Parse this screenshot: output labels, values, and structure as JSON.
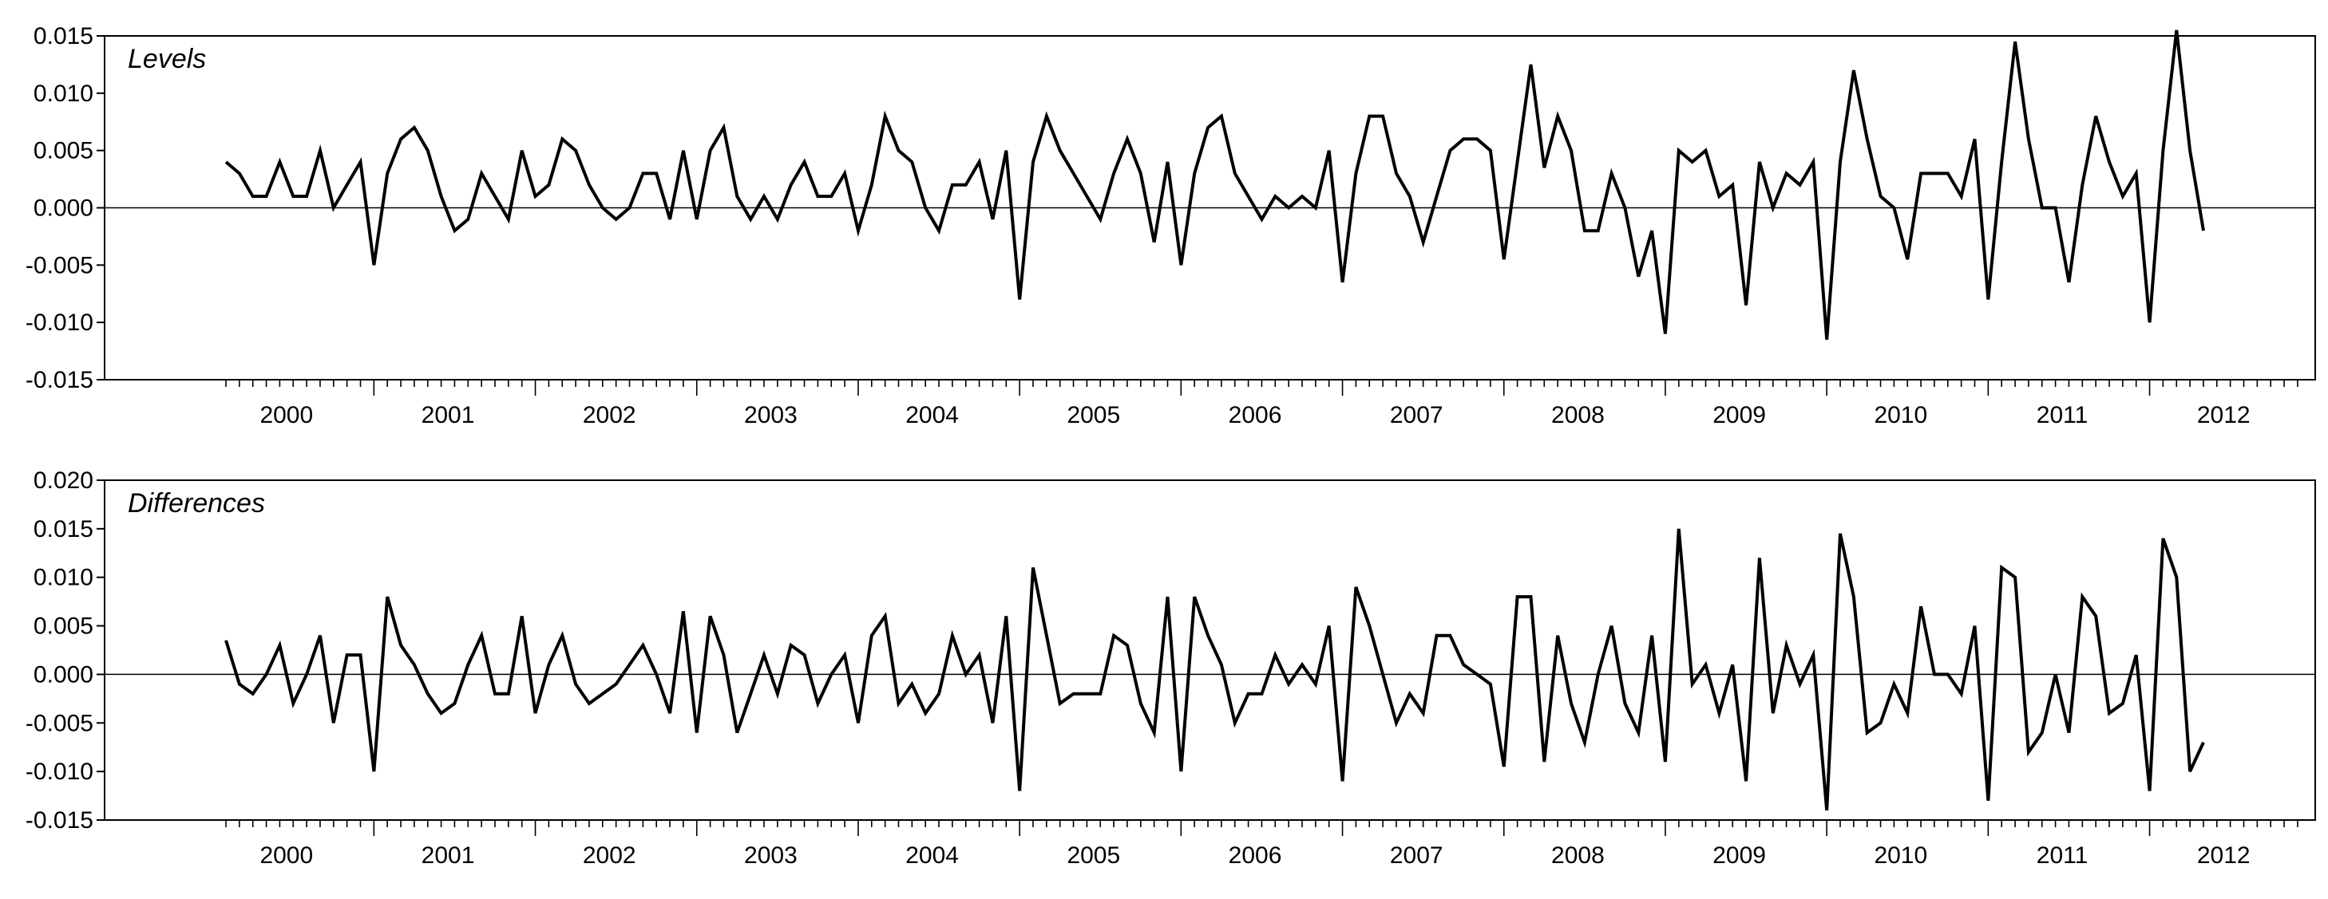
{
  "chart_data": [
    {
      "type": "line",
      "title": "Levels",
      "xlabel": "",
      "ylabel": "",
      "ylim": [
        -0.015,
        0.015
      ],
      "yticks": [
        "0.015",
        "0.010",
        "0.005",
        "0.000",
        "-0.005",
        "-0.010",
        "-0.015"
      ],
      "year_labels": [
        "2000",
        "2001",
        "2002",
        "2003",
        "2004",
        "2005",
        "2006",
        "2007",
        "2008",
        "2009",
        "2010",
        "2011",
        "2012"
      ],
      "x_start": "2000-02",
      "frequency": "monthly",
      "zero_line": true,
      "values": [
        0.004,
        0.003,
        0.001,
        0.001,
        0.004,
        0.001,
        0.001,
        0.005,
        0.0,
        0.002,
        0.004,
        -0.005,
        0.003,
        0.006,
        0.007,
        0.005,
        0.001,
        -0.002,
        -0.001,
        0.003,
        0.001,
        -0.001,
        0.005,
        0.001,
        0.002,
        0.006,
        0.005,
        0.002,
        0.0,
        -0.001,
        0.0,
        0.003,
        0.003,
        -0.001,
        0.005,
        -0.001,
        0.005,
        0.007,
        0.001,
        -0.001,
        0.001,
        -0.001,
        0.002,
        0.004,
        0.001,
        0.001,
        0.003,
        -0.002,
        0.002,
        0.008,
        0.005,
        0.004,
        0.0,
        -0.002,
        0.002,
        0.002,
        0.004,
        -0.001,
        0.005,
        -0.008,
        0.004,
        0.008,
        0.005,
        0.003,
        0.001,
        -0.001,
        0.003,
        0.006,
        0.003,
        -0.003,
        0.004,
        -0.005,
        0.003,
        0.007,
        0.008,
        0.003,
        0.001,
        -0.001,
        0.001,
        0.0,
        0.001,
        0.0,
        0.005,
        -0.0065,
        0.003,
        0.008,
        0.008,
        0.003,
        0.001,
        -0.003,
        0.001,
        0.005,
        0.006,
        0.006,
        0.005,
        -0.0045,
        0.004,
        0.0125,
        0.0035,
        0.008,
        0.005,
        -0.002,
        -0.002,
        0.003,
        0.0,
        -0.006,
        -0.002,
        -0.011,
        0.005,
        0.004,
        0.005,
        0.001,
        0.002,
        -0.0085,
        0.004,
        0.0,
        0.003,
        0.002,
        0.004,
        -0.0115,
        0.004,
        0.012,
        0.006,
        0.001,
        0.0,
        -0.0045,
        0.003,
        0.003,
        0.003,
        0.001,
        0.006,
        -0.008,
        0.004,
        0.0145,
        0.006,
        0.0,
        0.0,
        -0.0065,
        0.002,
        0.008,
        0.004,
        0.001,
        0.003,
        -0.01,
        0.005,
        0.0155,
        0.005,
        -0.002
      ]
    },
    {
      "type": "line",
      "title": "Differences",
      "xlabel": "",
      "ylabel": "",
      "ylim": [
        -0.015,
        0.02
      ],
      "yticks": [
        "0.020",
        "0.015",
        "0.010",
        "0.005",
        "0.000",
        "-0.005",
        "-0.010",
        "-0.015"
      ],
      "year_labels": [
        "2000",
        "2001",
        "2002",
        "2003",
        "2004",
        "2005",
        "2006",
        "2007",
        "2008",
        "2009",
        "2010",
        "2011",
        "2012"
      ],
      "x_start": "2000-02",
      "frequency": "monthly",
      "zero_line": true,
      "values": [
        0.0035,
        -0.001,
        -0.002,
        0.0,
        0.003,
        -0.003,
        0.0,
        0.004,
        -0.005,
        0.002,
        0.002,
        -0.01,
        0.008,
        0.003,
        0.001,
        -0.002,
        -0.004,
        -0.003,
        0.001,
        0.004,
        -0.002,
        -0.002,
        0.006,
        -0.004,
        0.001,
        0.004,
        -0.001,
        -0.003,
        -0.002,
        -0.001,
        0.001,
        0.003,
        0.0,
        -0.004,
        0.0065,
        -0.006,
        0.006,
        0.002,
        -0.006,
        -0.002,
        0.002,
        -0.002,
        0.003,
        0.002,
        -0.003,
        0.0,
        0.002,
        -0.005,
        0.004,
        0.006,
        -0.003,
        -0.001,
        -0.004,
        -0.002,
        0.004,
        0.0,
        0.002,
        -0.005,
        0.006,
        -0.012,
        0.011,
        0.004,
        -0.003,
        -0.002,
        -0.002,
        -0.002,
        0.004,
        0.003,
        -0.003,
        -0.006,
        0.008,
        -0.01,
        0.008,
        0.004,
        0.001,
        -0.005,
        -0.002,
        -0.002,
        0.002,
        -0.001,
        0.001,
        -0.001,
        0.005,
        -0.011,
        0.009,
        0.005,
        0.0,
        -0.005,
        -0.002,
        -0.004,
        0.004,
        0.004,
        0.001,
        0.0,
        -0.001,
        -0.0095,
        0.008,
        0.008,
        -0.009,
        0.004,
        -0.003,
        -0.007,
        0.0,
        0.005,
        -0.003,
        -0.006,
        0.004,
        -0.009,
        0.015,
        -0.001,
        0.001,
        -0.004,
        0.001,
        -0.011,
        0.012,
        -0.004,
        0.003,
        -0.001,
        0.002,
        -0.014,
        0.0145,
        0.008,
        -0.006,
        -0.005,
        -0.001,
        -0.004,
        0.007,
        0.0,
        0.0,
        -0.002,
        0.005,
        -0.013,
        0.011,
        0.01,
        -0.008,
        -0.006,
        0.0,
        -0.006,
        0.008,
        0.006,
        -0.004,
        -0.003,
        0.002,
        -0.012,
        0.014,
        0.01,
        -0.01,
        -0.007
      ]
    }
  ]
}
